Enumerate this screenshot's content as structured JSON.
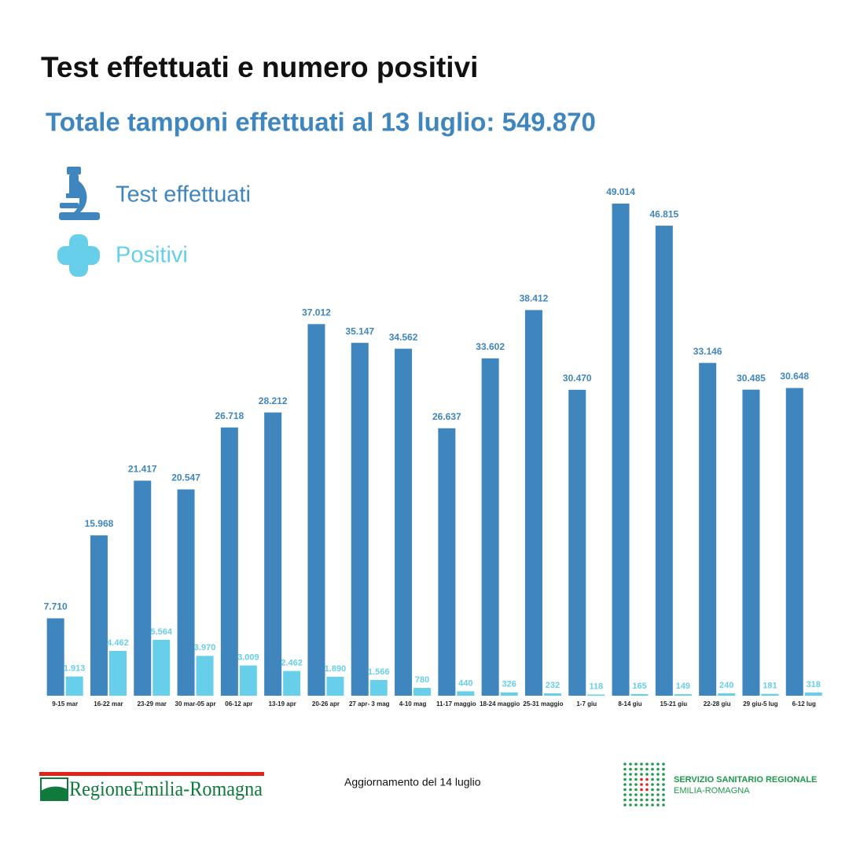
{
  "chart_data": {
    "type": "bar",
    "title": "Test effettuati e numero positivi",
    "subtitle": "Totale tamponi effettuati al 13 luglio:  549.870",
    "categories": [
      "9-15 mar",
      "16-22 mar",
      "23-29 mar",
      "30 mar-05 apr",
      "06-12 apr",
      "13-19 apr",
      "20-26 apr",
      "27 apr- 3 mag",
      "4-10 mag",
      "11-17 maggio",
      "18-24 maggio",
      "25-31 maggio",
      "1-7 giu",
      "8-14 giu",
      "15-21 giu",
      "22-28 giu",
      "29 giu-5 lug",
      "6-12 lug"
    ],
    "series": [
      {
        "name": "Test effettuati",
        "color": "#3f86bf",
        "values": [
          7710,
          15968,
          21417,
          20547,
          26718,
          28212,
          37012,
          35147,
          34562,
          26637,
          33602,
          38412,
          30470,
          49014,
          46815,
          33146,
          30485,
          30648
        ],
        "value_labels": [
          "7.710",
          "15.968",
          "21.417",
          "20.547",
          "26.718",
          "28.212",
          "37.012",
          "35.147",
          "34.562",
          "26.637",
          "33.602",
          "38.412",
          "30.470",
          "49.014",
          "46.815",
          "33.146",
          "30.485",
          "30.648"
        ]
      },
      {
        "name": "Positivi",
        "color": "#67cfe9",
        "values": [
          1913,
          4462,
          5564,
          3970,
          3009,
          2462,
          1890,
          1566,
          780,
          440,
          326,
          232,
          118,
          165,
          149,
          240,
          181,
          318
        ],
        "value_labels": [
          "1.913",
          "4.462",
          "5.564",
          "3.970",
          "3.009",
          "2.462",
          "1.890",
          "1.566",
          "780",
          "440",
          "326",
          "232",
          "118",
          "165",
          "149",
          "240",
          "181",
          "318"
        ]
      }
    ]
  },
  "footer": {
    "region": "RegioneEmilia-Romagna",
    "update": "Aggiornamento del 14 luglio",
    "service_line1": "SERVIZIO SANITARIO REGIONALE",
    "service_line2": "EMILIA-ROMAGNA"
  }
}
